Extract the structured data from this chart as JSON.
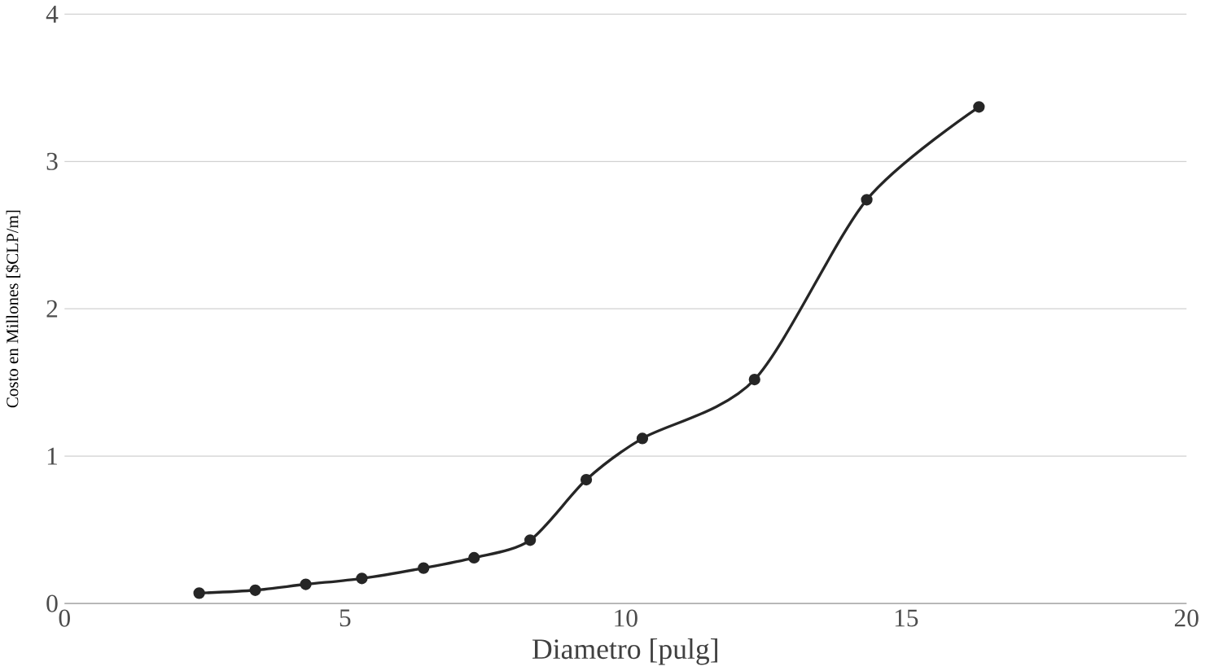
{
  "chart_data": {
    "type": "line",
    "xlabel": "Diametro [pulg]",
    "ylabel": "Costo en Millones [$CLP/m]",
    "x": [
      2.4,
      3.4,
      4.3,
      5.3,
      6.4,
      7.3,
      8.3,
      9.3,
      10.3,
      12.3,
      14.3,
      16.3
    ],
    "series": [
      {
        "color": "#262626",
        "values": [
          0.07,
          0.09,
          0.13,
          0.17,
          0.24,
          0.31,
          0.43,
          0.84,
          1.12,
          1.52,
          2.74,
          3.37
        ]
      }
    ],
    "xlim": [
      0,
      20
    ],
    "ylim": [
      0,
      4
    ],
    "xticks": [
      0,
      5,
      10,
      15,
      20
    ],
    "yticks": [
      0,
      1,
      2,
      3,
      4
    ],
    "grid": "y",
    "marker": "circle",
    "line_style": "solid"
  }
}
